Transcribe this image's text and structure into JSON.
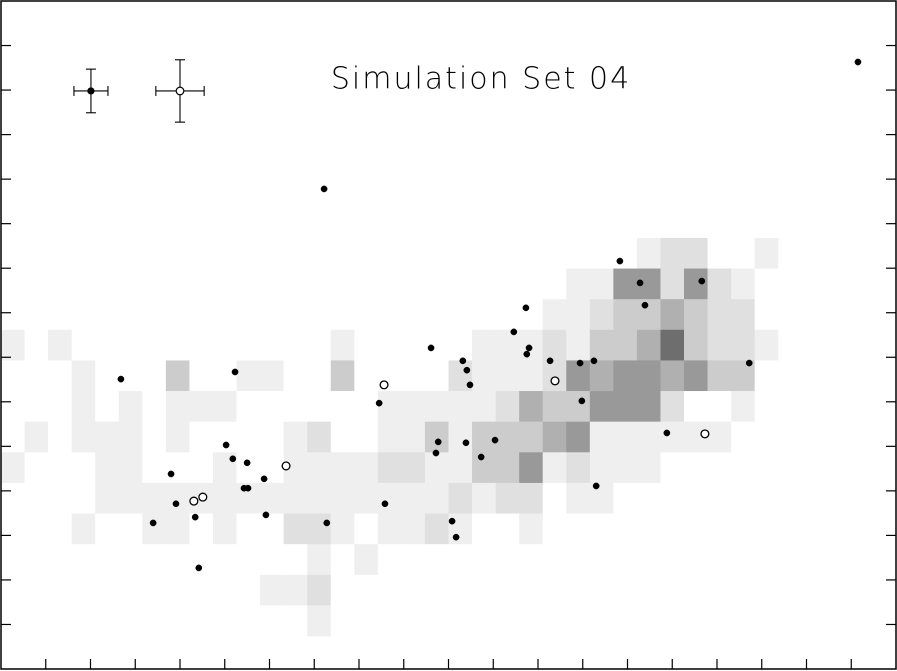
{
  "chart_data": {
    "type": "scatter",
    "title": "Simulation Set 04",
    "xlim": [
      0,
      20
    ],
    "ylim": [
      0,
      15
    ],
    "xticks": [
      1,
      2,
      3,
      4,
      5,
      6,
      7,
      8,
      9,
      10,
      11,
      12,
      13,
      14,
      15,
      16,
      17,
      18,
      19
    ],
    "yticks": [
      1,
      2,
      3,
      4,
      5,
      6,
      7,
      8,
      9,
      10,
      11,
      12,
      13,
      14
    ],
    "heatmap": {
      "xrange": [
        0,
        20
      ],
      "yrange": [
        0.74,
        9.68
      ],
      "colormap": [
        "#ffffff",
        "#efefef",
        "#e0e0e0",
        "#cccccc",
        "#b0b0b0",
        "#999999",
        "#6e6e6e"
      ],
      "z": [
        [
          0,
          0,
          0,
          0,
          0,
          0,
          0,
          0,
          0,
          0,
          0,
          0,
          0,
          0,
          0,
          0,
          0,
          0,
          0,
          0,
          0,
          0,
          0,
          0,
          0,
          0,
          0,
          1,
          2,
          2,
          0,
          0,
          1,
          0,
          0,
          0,
          0,
          0
        ],
        [
          0,
          0,
          0,
          0,
          0,
          0,
          0,
          0,
          0,
          0,
          0,
          0,
          0,
          0,
          0,
          0,
          0,
          0,
          0,
          0,
          0,
          0,
          0,
          0,
          1,
          1,
          5,
          5,
          2,
          5,
          2,
          1,
          0,
          0,
          0,
          0,
          0,
          0
        ],
        [
          0,
          0,
          0,
          0,
          0,
          0,
          0,
          0,
          0,
          0,
          0,
          0,
          0,
          0,
          0,
          0,
          0,
          0,
          0,
          0,
          0,
          0,
          0,
          1,
          1,
          2,
          3,
          3,
          4,
          3,
          2,
          2,
          0,
          0,
          0,
          0,
          0,
          0
        ],
        [
          1,
          0,
          1,
          0,
          0,
          0,
          0,
          0,
          0,
          0,
          0,
          0,
          0,
          0,
          1,
          0,
          0,
          0,
          0,
          0,
          1,
          1,
          1,
          2,
          1,
          3,
          3,
          4,
          6,
          3,
          2,
          2,
          1,
          0,
          0,
          0,
          0,
          0
        ],
        [
          0,
          0,
          0,
          1,
          0,
          0,
          0,
          3,
          0,
          0,
          1,
          1,
          0,
          0,
          3,
          0,
          0,
          0,
          0,
          2,
          1,
          1,
          1,
          2,
          5,
          4,
          5,
          5,
          4,
          5,
          3,
          3,
          0,
          0,
          0,
          0,
          0,
          0
        ],
        [
          0,
          0,
          0,
          1,
          0,
          1,
          0,
          1,
          1,
          1,
          0,
          0,
          0,
          0,
          0,
          0,
          1,
          1,
          1,
          1,
          1,
          2,
          4,
          3,
          3,
          5,
          5,
          5,
          2,
          0,
          0,
          1,
          0,
          0,
          0,
          0,
          0,
          0
        ],
        [
          0,
          1,
          0,
          1,
          1,
          1,
          0,
          1,
          0,
          0,
          0,
          0,
          1,
          2,
          0,
          0,
          1,
          1,
          3,
          1,
          3,
          3,
          3,
          4,
          5,
          1,
          1,
          1,
          1,
          1,
          1,
          0,
          0,
          0,
          0,
          0,
          0,
          0
        ],
        [
          1,
          0,
          0,
          0,
          1,
          1,
          0,
          0,
          0,
          1,
          0,
          0,
          1,
          1,
          1,
          1,
          2,
          2,
          1,
          1,
          3,
          3,
          5,
          1,
          2,
          1,
          1,
          1,
          0,
          0,
          0,
          0,
          0,
          0,
          0,
          0,
          0,
          0
        ],
        [
          0,
          0,
          0,
          0,
          1,
          1,
          1,
          1,
          1,
          1,
          1,
          1,
          1,
          1,
          1,
          1,
          1,
          1,
          1,
          2,
          1,
          2,
          2,
          0,
          1,
          1,
          0,
          0,
          0,
          0,
          0,
          0,
          0,
          0,
          0,
          0,
          0,
          0
        ],
        [
          0,
          0,
          0,
          1,
          0,
          0,
          1,
          1,
          0,
          1,
          0,
          0,
          2,
          2,
          1,
          0,
          1,
          1,
          2,
          1,
          0,
          0,
          1,
          0,
          0,
          0,
          0,
          0,
          0,
          0,
          0,
          0,
          0,
          0,
          0,
          0,
          0,
          0
        ],
        [
          0,
          0,
          0,
          0,
          0,
          0,
          0,
          0,
          0,
          0,
          0,
          0,
          0,
          1,
          0,
          1,
          0,
          0,
          0,
          0,
          0,
          0,
          0,
          0,
          0,
          0,
          0,
          0,
          0,
          0,
          0,
          0,
          0,
          0,
          0,
          0,
          0,
          0
        ],
        [
          0,
          0,
          0,
          0,
          0,
          0,
          0,
          0,
          0,
          0,
          0,
          1,
          1,
          2,
          0,
          0,
          0,
          0,
          0,
          0,
          0,
          0,
          0,
          0,
          0,
          0,
          0,
          0,
          0,
          0,
          0,
          0,
          0,
          0,
          0,
          0,
          0,
          0
        ],
        [
          0,
          0,
          0,
          0,
          0,
          0,
          0,
          0,
          0,
          0,
          0,
          0,
          0,
          1,
          0,
          0,
          0,
          0,
          0,
          0,
          0,
          0,
          0,
          0,
          0,
          0,
          0,
          0,
          0,
          0,
          0,
          0,
          0,
          0,
          0,
          0,
          0,
          0
        ]
      ]
    },
    "series": [
      {
        "marker": "filled",
        "color": "#000000",
        "x": [
          19.15,
          7.22,
          13.83,
          15.66,
          14.28,
          14.39,
          11.73,
          11.46,
          9.61,
          11.8,
          11.75,
          10.32,
          12.27,
          12.94,
          13.25,
          16.72,
          2.68,
          5.23,
          10.41,
          10.48,
          8.45,
          12.98,
          14.88,
          9.77,
          11.04,
          10.39,
          5.03,
          9.72,
          5.18,
          5.5,
          10.73,
          3.8,
          5.88,
          5.43,
          5.52,
          13.3,
          3.91,
          8.58,
          4.34,
          5.92,
          3.4,
          7.28,
          10.08,
          10.17,
          4.42
        ],
        "y": [
          13.63,
          10.78,
          9.16,
          8.71,
          8.67,
          8.17,
          8.11,
          7.57,
          7.21,
          7.21,
          7.07,
          6.92,
          6.92,
          6.87,
          6.92,
          6.87,
          6.51,
          6.67,
          6.71,
          6.38,
          5.97,
          6.02,
          5.3,
          5.1,
          5.14,
          5.08,
          5.03,
          4.85,
          4.72,
          4.63,
          4.76,
          4.38,
          4.27,
          4.06,
          4.06,
          4.11,
          3.71,
          3.71,
          3.41,
          3.46,
          3.28,
          3.28,
          3.32,
          2.96,
          2.27
        ]
      },
      {
        "marker": "open",
        "color": "#000000",
        "x": [
          8.56,
          12.38,
          6.37,
          4.31,
          4.51,
          15.73
        ],
        "y": [
          6.38,
          6.47,
          4.56,
          3.77,
          3.86,
          5.28
        ]
      }
    ],
    "typical_errors": [
      {
        "marker": "filled",
        "x": 2.01,
        "y": 12.98,
        "xerr": 0.38,
        "yerr": 0.49
      },
      {
        "marker": "open",
        "x": 4.0,
        "y": 12.98,
        "xerr": 0.54,
        "yerr": 0.7
      }
    ]
  }
}
